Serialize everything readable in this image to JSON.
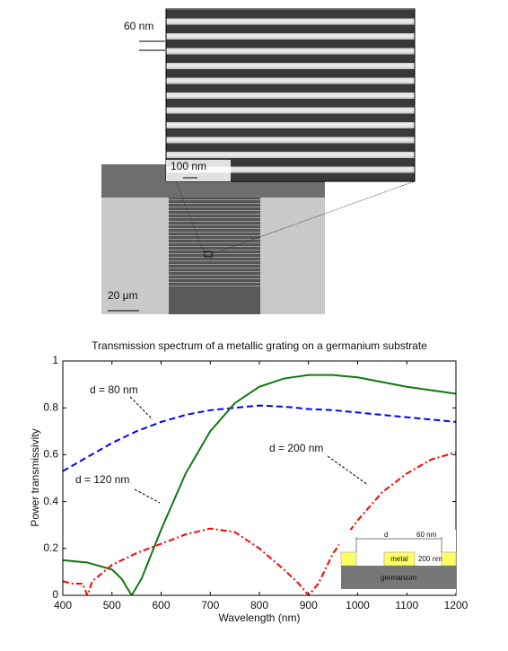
{
  "images": {
    "zoom_scale": "60 nm",
    "zoom_bar": "100 nm",
    "overview_bar": "20 μm"
  },
  "chart_data": {
    "type": "line",
    "title": "Transmission spectrum of a metallic grating on a germanium substrate",
    "x_label": "Wavelength (nm)",
    "y_label": "Power transmissivity",
    "xlim": [
      400,
      1200
    ],
    "ylim": [
      0,
      1
    ],
    "xticks": [
      400,
      500,
      600,
      700,
      800,
      900,
      1000,
      1100,
      1200
    ],
    "yticks": [
      0,
      0.2,
      0.4,
      0.6,
      0.8,
      1
    ],
    "series": [
      {
        "name": "d = 80 nm",
        "color": "#0000ff",
        "linestyle": "dashed",
        "x": [
          400,
          450,
          500,
          550,
          600,
          650,
          700,
          750,
          800,
          850,
          900,
          950,
          1000,
          1050,
          1100,
          1150,
          1200
        ],
        "values": [
          0.53,
          0.59,
          0.65,
          0.7,
          0.74,
          0.77,
          0.79,
          0.8,
          0.81,
          0.805,
          0.795,
          0.79,
          0.78,
          0.77,
          0.76,
          0.75,
          0.74
        ]
      },
      {
        "name": "d = 120 nm",
        "color": "#117711",
        "linestyle": "solid",
        "x": [
          400,
          450,
          500,
          520,
          540,
          560,
          600,
          650,
          700,
          750,
          800,
          850,
          900,
          950,
          1000,
          1050,
          1100,
          1150,
          1200
        ],
        "values": [
          0.15,
          0.14,
          0.11,
          0.07,
          0,
          0.07,
          0.28,
          0.52,
          0.7,
          0.82,
          0.89,
          0.925,
          0.94,
          0.94,
          0.93,
          0.91,
          0.89,
          0.875,
          0.86
        ]
      },
      {
        "name": "d = 200 nm",
        "color": "#ff0000",
        "linestyle": "dashdot",
        "x": [
          400,
          420,
          440,
          450,
          460,
          500,
          550,
          600,
          650,
          700,
          750,
          800,
          850,
          880,
          900,
          920,
          950,
          1000,
          1050,
          1100,
          1150,
          1200
        ],
        "values": [
          0.06,
          0.05,
          0.05,
          0,
          0.06,
          0.13,
          0.18,
          0.22,
          0.26,
          0.285,
          0.27,
          0.2,
          0.11,
          0.05,
          0,
          0.05,
          0.18,
          0.32,
          0.44,
          0.52,
          0.58,
          0.61
        ]
      }
    ]
  },
  "inset": {
    "d": "d",
    "gap": "60 nm",
    "metal": "metal",
    "height": "200 nm",
    "substrate": "germanium"
  }
}
